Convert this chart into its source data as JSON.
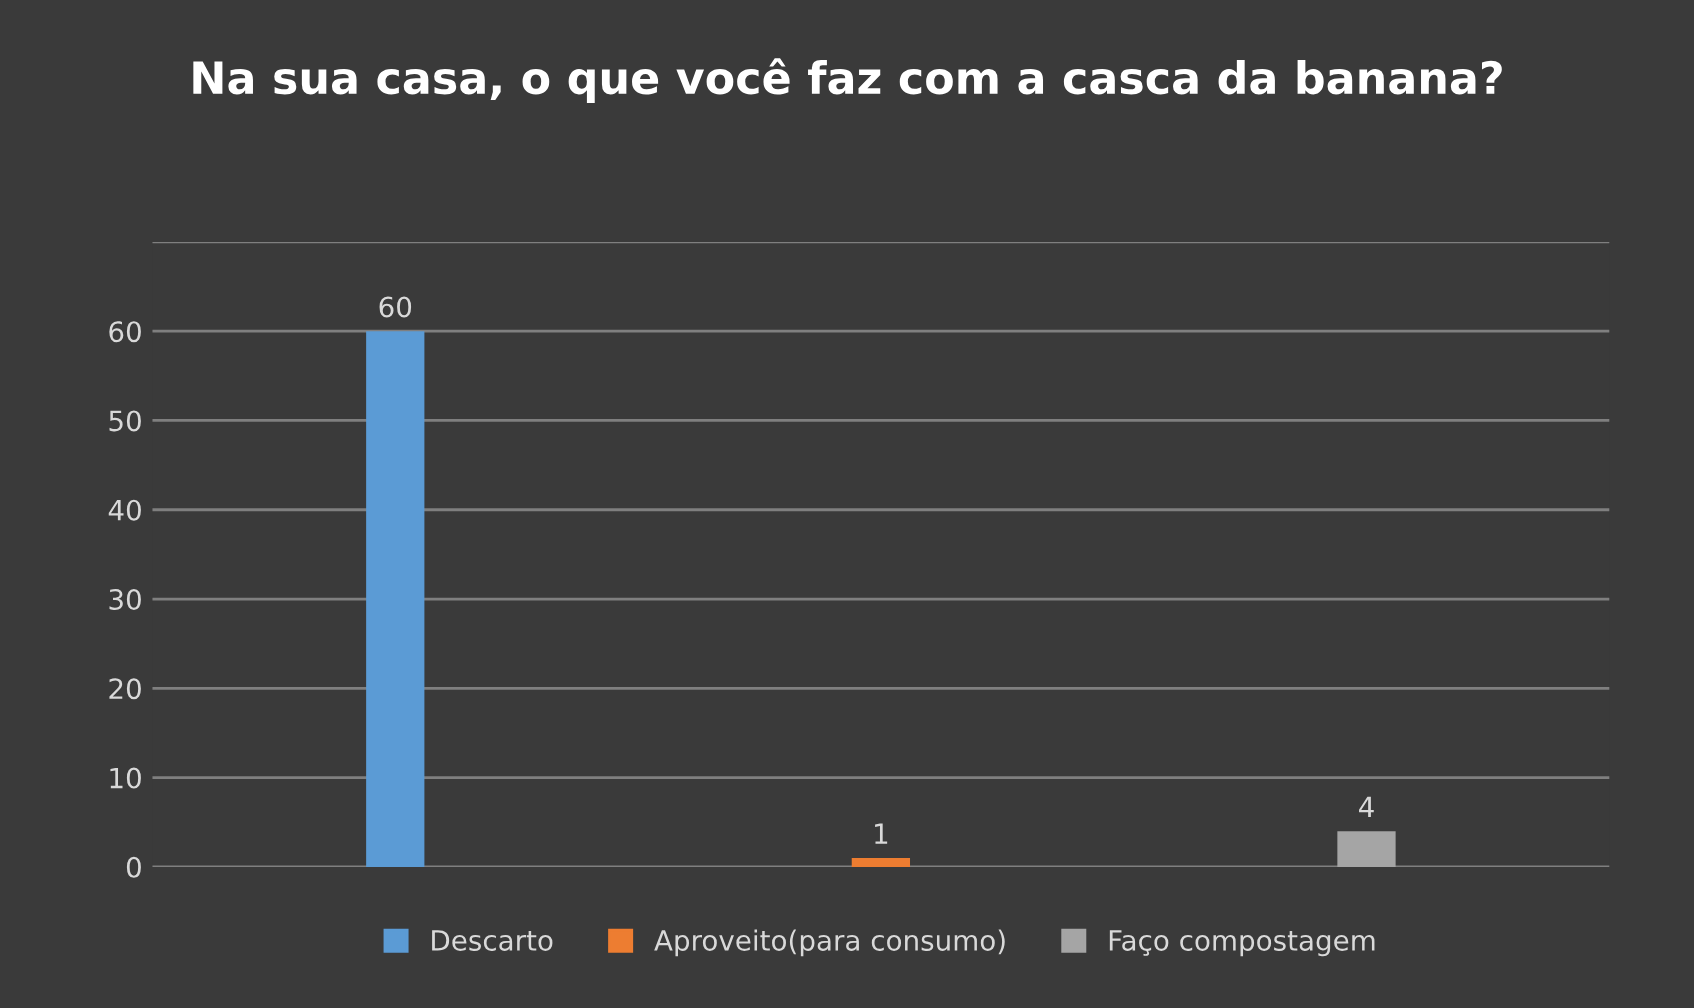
{
  "chart_data": {
    "type": "bar",
    "title": "Na sua casa, o que você faz com a casca da banana?",
    "categories": [
      null,
      null,
      null
    ],
    "series": [
      {
        "name": "Descarto",
        "color": "#5b9bd5",
        "values": [
          60,
          null,
          null
        ]
      },
      {
        "name": "Aproveito(para consumo)",
        "color": "#ed7d31",
        "values": [
          null,
          1,
          null
        ]
      },
      {
        "name": "Faço compostagem",
        "color": "#a5a5a5",
        "values": [
          null,
          null,
          4
        ]
      }
    ],
    "ylim": [
      0,
      70
    ],
    "yticks": [
      0,
      10,
      20,
      30,
      40,
      50,
      60,
      {
        "value": 70,
        "label": null
      }
    ],
    "grid": "y",
    "legend": "bottom",
    "data_labels": true
  }
}
